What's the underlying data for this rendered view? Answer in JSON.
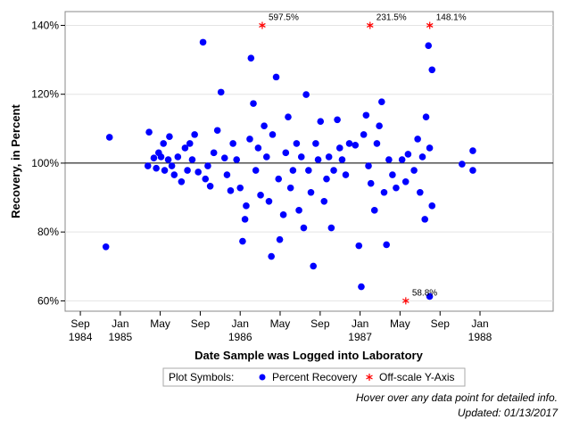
{
  "chart_data": {
    "type": "scatter",
    "y_label": "Recovery, in Percent",
    "x_label": "Date Sample was Logged into Laboratory",
    "xlim": [
      1984.54,
      1988.61
    ],
    "ylim": [
      57,
      144
    ],
    "xticks": [
      {
        "value": 1984.667,
        "label": "Sep 1984"
      },
      {
        "value": 1985.0,
        "label": "Jan 1985"
      },
      {
        "value": 1985.333,
        "label": "May"
      },
      {
        "value": 1985.667,
        "label": "Sep"
      },
      {
        "value": 1986.0,
        "label": "Jan 1986"
      },
      {
        "value": 1986.333,
        "label": "May"
      },
      {
        "value": 1986.667,
        "label": "Sep"
      },
      {
        "value": 1987.0,
        "label": "Jan 1987"
      },
      {
        "value": 1987.333,
        "label": "May"
      },
      {
        "value": 1987.667,
        "label": "Sep"
      },
      {
        "value": 1988.0,
        "label": "Jan 1988"
      }
    ],
    "yticks": [
      {
        "value": 60,
        "label": "60%"
      },
      {
        "value": 80,
        "label": "80%"
      },
      {
        "value": 100,
        "label": "100%"
      },
      {
        "value": 120,
        "label": "120%"
      },
      {
        "value": 140,
        "label": "140%"
      }
    ],
    "reference_line": 100,
    "grid": true,
    "series": [
      {
        "name": "Percent Recovery",
        "color": "#0000ff",
        "x": [
          1984.88,
          1984.91,
          1985.23,
          1985.24,
          1985.28,
          1985.3,
          1985.32,
          1985.34,
          1985.36,
          1985.37,
          1985.4,
          1985.41,
          1985.43,
          1985.45,
          1985.48,
          1985.51,
          1985.54,
          1985.56,
          1985.58,
          1985.6,
          1985.62,
          1985.65,
          1985.69,
          1985.71,
          1985.73,
          1985.75,
          1985.78,
          1985.81,
          1985.84,
          1985.87,
          1985.89,
          1985.92,
          1985.94,
          1985.97,
          1986.0,
          1986.02,
          1986.04,
          1986.05,
          1986.08,
          1986.09,
          1986.11,
          1986.13,
          1986.15,
          1986.17,
          1986.2,
          1986.22,
          1986.24,
          1986.26,
          1986.27,
          1986.3,
          1986.32,
          1986.33,
          1986.36,
          1986.38,
          1986.4,
          1986.42,
          1986.44,
          1986.47,
          1986.49,
          1986.51,
          1986.53,
          1986.55,
          1986.57,
          1986.59,
          1986.61,
          1986.63,
          1986.65,
          1986.67,
          1986.7,
          1986.72,
          1986.74,
          1986.76,
          1986.78,
          1986.81,
          1986.83,
          1986.85,
          1986.88,
          1986.91,
          1986.96,
          1986.99,
          1987.01,
          1987.03,
          1987.05,
          1987.07,
          1987.09,
          1987.12,
          1987.14,
          1987.16,
          1987.18,
          1987.2,
          1987.22,
          1987.24,
          1987.27,
          1987.3,
          1987.35,
          1987.38,
          1987.4,
          1987.45,
          1987.48,
          1987.5,
          1987.52,
          1987.54,
          1987.55,
          1987.57,
          1987.58,
          1987.6,
          1987.58,
          1987.6,
          1987.85,
          1987.94,
          1987.94
        ],
        "values": [
          75.7,
          107.5,
          99.2,
          109,
          101.5,
          98.5,
          103,
          101.8,
          105.7,
          97.9,
          101,
          107.7,
          99.2,
          96.6,
          101.8,
          94.6,
          104.4,
          97.9,
          105.7,
          101,
          108.3,
          97.4,
          135.1,
          95.4,
          99.2,
          93.3,
          103,
          109.5,
          120.6,
          101.5,
          96.6,
          92,
          105.7,
          101,
          92.8,
          77.3,
          83.7,
          87.6,
          107,
          130.5,
          117.3,
          97.9,
          104.4,
          90.7,
          110.8,
          101.8,
          88.9,
          72.9,
          108.3,
          125,
          95.4,
          77.8,
          85,
          103,
          113.4,
          92.8,
          97.9,
          105.7,
          86.3,
          101.8,
          81.2,
          119.9,
          97.9,
          91.5,
          70.1,
          105.7,
          101,
          112.1,
          88.9,
          95.4,
          101.8,
          81.2,
          97.9,
          112.6,
          104.4,
          101,
          96.6,
          105.7,
          105.2,
          76,
          64.1,
          108.3,
          113.9,
          99.2,
          94.1,
          86.3,
          105.7,
          110.8,
          117.8,
          91.5,
          76.3,
          101,
          96.6,
          92.8,
          101,
          94.6,
          102.6,
          97.9,
          107,
          91.5,
          101.8,
          83.7,
          113.4,
          134.1,
          104.4,
          127.1,
          61.3,
          87.6,
          99.7,
          103.6,
          97.9
        ]
      },
      {
        "name": "Off-scale Y-Axis",
        "color": "#ff0000",
        "x": [
          1986.184,
          1987.083,
          1987.581,
          1987.381
        ],
        "values": [
          597.5,
          231.5,
          148.1,
          58.8
        ],
        "value_labels": [
          "597.5%",
          "231.5%",
          "148.1%",
          "58.8%"
        ]
      }
    ],
    "legend_title": "Plot Symbols:",
    "notes": [
      "Hover over any data point for detailed info.",
      "Updated: 01/13/2017"
    ]
  }
}
